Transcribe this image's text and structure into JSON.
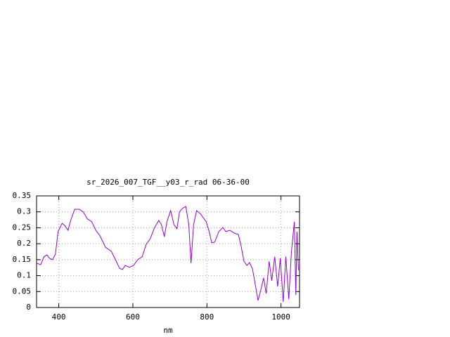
{
  "chart_data": {
    "type": "line",
    "title": "sr_2026_007_TGF__y03_r_rad 06-36-00",
    "x_label": "nm",
    "xlim": [
      340,
      1050
    ],
    "xticks": [
      400,
      600,
      800,
      1000
    ],
    "ylim": [
      0,
      0.35
    ],
    "yticks": [
      0,
      0.05,
      0.1,
      0.15,
      0.2,
      0.25,
      0.3,
      0.35
    ],
    "grid": true,
    "series": [
      {
        "color": "#9400d3",
        "x": [
          341,
          351,
          360,
          368,
          375,
          383,
          391,
          398,
          409,
          417,
          425,
          432,
          443,
          455,
          466,
          477,
          489,
          500,
          511,
          526,
          542,
          553,
          564,
          572,
          579,
          591,
          602,
          613,
          625,
          636,
          647,
          658,
          670,
          677,
          685,
          692,
          702,
          711,
          719,
          726,
          734,
          743,
          751,
          757,
          764,
          772,
          783,
          791,
          798,
          806,
          813,
          821,
          832,
          843,
          851,
          862,
          874,
          885,
          892,
          900,
          908,
          915,
          923,
          930,
          938,
          945,
          953,
          960,
          968,
          975,
          983,
          991,
          998,
          1006,
          1013,
          1021,
          1028,
          1036,
          1040,
          1043,
          1047
        ],
        "values": [
          0.139,
          0.134,
          0.159,
          0.165,
          0.154,
          0.15,
          0.167,
          0.238,
          0.264,
          0.256,
          0.242,
          0.273,
          0.308,
          0.308,
          0.3,
          0.278,
          0.269,
          0.242,
          0.225,
          0.189,
          0.176,
          0.15,
          0.123,
          0.119,
          0.132,
          0.126,
          0.132,
          0.15,
          0.159,
          0.198,
          0.216,
          0.249,
          0.273,
          0.26,
          0.222,
          0.269,
          0.304,
          0.26,
          0.247,
          0.3,
          0.311,
          0.317,
          0.26,
          0.139,
          0.26,
          0.304,
          0.293,
          0.28,
          0.269,
          0.238,
          0.203,
          0.205,
          0.238,
          0.251,
          0.238,
          0.242,
          0.233,
          0.229,
          0.194,
          0.145,
          0.132,
          0.141,
          0.121,
          0.075,
          0.022,
          0.053,
          0.093,
          0.044,
          0.145,
          0.084,
          0.159,
          0.066,
          0.154,
          0.018,
          0.159,
          0.026,
          0.172,
          0.269,
          0.04,
          0.238,
          0.117
        ]
      }
    ]
  }
}
